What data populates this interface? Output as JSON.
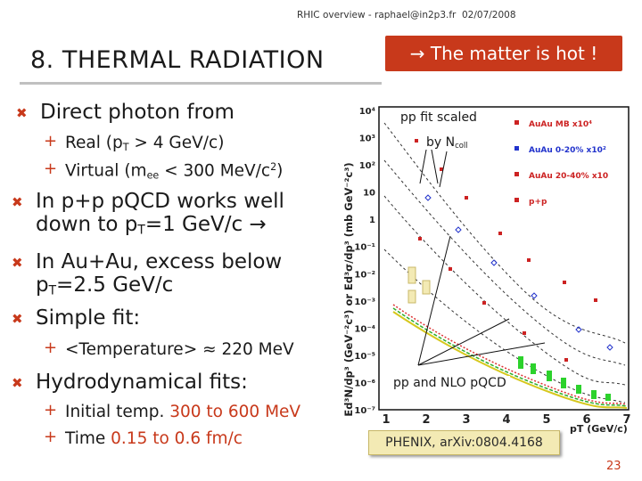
{
  "header": {
    "left": "RHIC overview - raphael@in2p3.fr",
    "right": "02/07/2008"
  },
  "slide": {
    "title": "8. THERMAL RADIATION",
    "banner": "→ The matter is hot !",
    "page_number": "23"
  },
  "bullets": {
    "b1": "Direct photon from",
    "b1_s1_a": "Real (p",
    "b1_s1_sub": "T",
    "b1_s1_b": " > 4 GeV/c)",
    "b1_s2_a": "Virtual (m",
    "b1_s2_sub": "ee",
    "b1_s2_b": " < 300 MeV/c",
    "b1_s2_sup": "2",
    "b1_s2_c": ")",
    "b2_l1": "In p+p pQCD works well",
    "b2_l2_a": "down to p",
    "b2_l2_sub": "T",
    "b2_l2_b": "=1 GeV/c →",
    "b3_l1": "In Au+Au, excess below",
    "b3_l2_a": "p",
    "b3_l2_sub": "T",
    "b3_l2_b": "=2.5 GeV/c",
    "b4": "Simple fit:",
    "b4_s1": "<Temperature> ≈ 220 MeV",
    "b5": "Hydrodynamical fits:",
    "b5_s1_a": "Initial temp. ",
    "b5_s1_b": "300 to 600 MeV",
    "b5_s2_a": "Time ",
    "b5_s2_b": "0.15 to 0.6 fm/c"
  },
  "plot": {
    "annotation_top": "pp fit scaled",
    "annotation_ncoll_a": "by N",
    "annotation_ncoll_sub": "coll",
    "annotation_bottom": "pp and NLO pQCD",
    "reference": "PHENIX, arXiv:0804.4168",
    "ylabel": "Ed³N/dp³ (GeV⁻²c³) or Ed³σ/dp³ (mb GeV⁻²c³)",
    "xlabel": "pT (GeV/c)",
    "x_ticks": [
      "1",
      "2",
      "3",
      "4",
      "5",
      "6",
      "7"
    ],
    "y_ticks": [
      "10⁴",
      "10³",
      "10²",
      "10",
      "1",
      "10⁻¹",
      "10⁻²",
      "10⁻³",
      "10⁻⁴",
      "10⁻⁵",
      "10⁻⁶",
      "10⁻⁷"
    ],
    "legend": [
      {
        "label": "AuAu MB x10⁴",
        "color": "#cc2222"
      },
      {
        "label": "AuAu 0-20% x10²",
        "color": "#2233cc"
      },
      {
        "label": "AuAu 20-40% x10",
        "color": "#cc2222"
      },
      {
        "label": "p+p",
        "color": "#cc2222"
      }
    ]
  },
  "colors": {
    "accent": "#c8391b",
    "banner_bg": "#c8391b",
    "ref_bg": "#f3eab4"
  }
}
